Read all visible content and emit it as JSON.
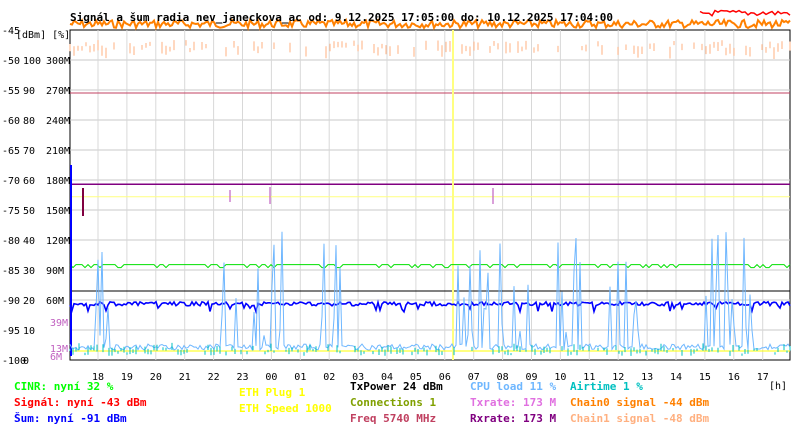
{
  "chart_data": {
    "type": "line",
    "title": "Signál a šum radia nev_janeckova_ac od: 9.12.2025 17:05:00 do: 10.12.2025 17:04:00",
    "y_axis_units": "[dBm] [%]",
    "dbm_ticks": [
      "-45",
      "-50",
      "-55",
      "-60",
      "-65",
      "-70",
      "-75",
      "-80",
      "-85",
      "-90",
      "-95",
      "-100"
    ],
    "pct_ticks": [
      "100",
      "90",
      "80",
      "70",
      "60",
      "50",
      "40",
      "30",
      "20",
      "10",
      "0"
    ],
    "rate_ticks": [
      "300M",
      "270M",
      "240M",
      "210M",
      "180M",
      "150M",
      "120M",
      "90M",
      "60M"
    ],
    "rate_ticks_low": [
      "39M",
      "13M",
      "6M"
    ],
    "x_ticks": [
      "18",
      "19",
      "20",
      "21",
      "22",
      "23",
      "00",
      "01",
      "02",
      "03",
      "04",
      "05",
      "06",
      "07",
      "08",
      "09",
      "10",
      "11",
      "12",
      "13",
      "14",
      "15",
      "16",
      "17"
    ],
    "x_unit": "[h]",
    "ylim_dbm": [
      -100,
      -45
    ],
    "reference_lines": {
      "signal_dbm": -43,
      "noise_dbm": -91,
      "txrate_mbps": 173,
      "rxrate_mbps": 173,
      "chain0_dbm": -44,
      "eth_speed_mbps": 1000
    },
    "series": [
      {
        "name": "Signál",
        "color": "#ff0000",
        "level_dbm": -43
      },
      {
        "name": "Chain0 signal",
        "color": "#ff8000",
        "level_dbm": -44
      },
      {
        "name": "Chain1 signal",
        "color": "#ffb080",
        "level_dbm": -48
      },
      {
        "name": "Šum",
        "color": "#0000ff",
        "level_dbm": -91
      },
      {
        "name": "CINR",
        "color": "#00ff00",
        "level_pct": 32
      },
      {
        "name": "CPU load",
        "color": "#6fb7ff",
        "level_pct": 11
      },
      {
        "name": "Airtime",
        "color": "#00c0c0",
        "level_pct": 1
      },
      {
        "name": "Txrate",
        "color": "#c060c0",
        "level_mbps": 173
      },
      {
        "name": "Rxrate",
        "color": "#800080",
        "level_mbps": 173
      }
    ]
  },
  "legend": {
    "col1": [
      {
        "text": "CINR: nyní 32 %",
        "color": "#00ff00"
      },
      {
        "text": "Signál: nyní -43 dBm",
        "color": "#ff0000"
      },
      {
        "text": "Šum: nyní -91 dBm",
        "color": "#0000ff"
      }
    ],
    "col2": [
      {
        "text": "ETH Plug 1",
        "color": "#ffff00"
      },
      {
        "text": "ETH Speed 1000",
        "color": "#ffff00"
      }
    ],
    "col3": [
      {
        "text": "TxPower 24 dBm",
        "color": "#000000"
      },
      {
        "text": "Connections 1",
        "color": "#80a000"
      },
      {
        "text": "Freq 5740 MHz",
        "color": "#c04060"
      }
    ],
    "col4": [
      {
        "text": "CPU load 11 %",
        "color": "#6fb7ff"
      },
      {
        "text": "Txrate: 173 M",
        "color": "#e070e0"
      },
      {
        "text": "Rxrate: 173 M",
        "color": "#800080"
      }
    ],
    "col5": [
      {
        "text": "Airtime 1 %",
        "color": "#00c0c0"
      },
      {
        "text": "Chain0 signal -44 dBm",
        "color": "#ff8000"
      },
      {
        "text": "Chain1 signal -48 dBm",
        "color": "#ffb080"
      }
    ]
  }
}
